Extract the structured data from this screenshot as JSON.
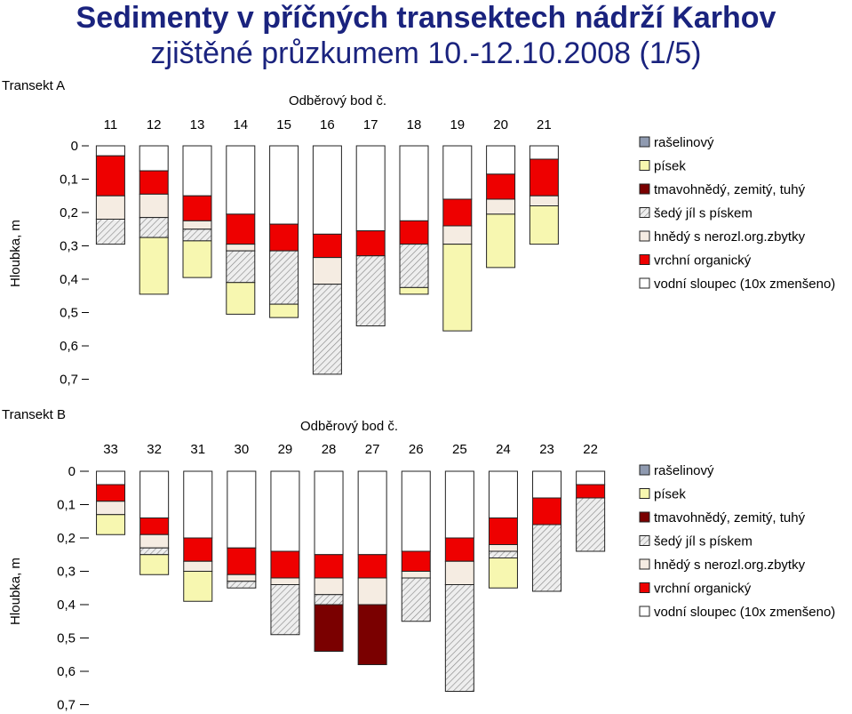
{
  "title": {
    "line1": "Sedimenty v příčných transektech nádrží Karhov",
    "line2": "zjištěné průzkumem 10.-12.10.2008   (1/5)"
  },
  "colors": {
    "rasselinovy": "#8f9ab0",
    "pisek": "#f7f7b0",
    "tmavohnedy": "#7a0000",
    "sedy_jil": "#e4e4e4",
    "hnedy": "#f5ece2",
    "vrchni": "#ee0000",
    "vodni": "#ffffff"
  },
  "legend": [
    {
      "key": "rasselinovy",
      "label": "rašelinový"
    },
    {
      "key": "pisek",
      "label": "písek"
    },
    {
      "key": "tmavohnedy",
      "label": "tmavohnědý, zemitý, tuhý"
    },
    {
      "key": "sedy_jil",
      "label": "šedý jíl s pískem"
    },
    {
      "key": "hnedy",
      "label": "hnědý s nerozl.org.zbytky"
    },
    {
      "key": "vrchni",
      "label": "vrchní organický"
    },
    {
      "key": "vodni",
      "label": "vodní sloupec (10x zmenšeno)"
    }
  ],
  "chart_data": [
    {
      "type": "bar",
      "stacked": true,
      "transect_label": "Transekt A",
      "xlabel": "Odběrový bod č.",
      "ylabel": "Hloubka, m",
      "ylim": [
        0,
        0.7
      ],
      "yticks": [
        "0",
        "0,1",
        "0,2",
        "0,3",
        "0,4",
        "0,5",
        "0,6",
        "0,7"
      ],
      "categories": [
        "11",
        "12",
        "13",
        "14",
        "15",
        "16",
        "17",
        "18",
        "19",
        "20",
        "21"
      ],
      "segment_order": [
        "vodni",
        "vrchni",
        "hnedy",
        "sedy_jil",
        "pisek",
        "tmavohnedy",
        "rasselinovy"
      ],
      "series": [
        {
          "key": "vodni",
          "values": [
            0.03,
            0.075,
            0.15,
            0.205,
            0.235,
            0.265,
            0.255,
            0.225,
            0.16,
            0.085,
            0.04
          ]
        },
        {
          "key": "vrchni",
          "values": [
            0.12,
            0.07,
            0.075,
            0.09,
            0.08,
            0.07,
            0.075,
            0.07,
            0.08,
            0.075,
            0.11
          ]
        },
        {
          "key": "hnedy",
          "values": [
            0.07,
            0.07,
            0.025,
            0.02,
            0.0,
            0.08,
            0.0,
            0.0,
            0.055,
            0.045,
            0.03
          ]
        },
        {
          "key": "sedy_jil",
          "values": [
            0.075,
            0.06,
            0.035,
            0.095,
            0.16,
            0.27,
            0.21,
            0.13,
            0.0,
            0.0,
            0.0
          ]
        },
        {
          "key": "pisek",
          "values": [
            0.0,
            0.17,
            0.11,
            0.095,
            0.04,
            0.0,
            0.0,
            0.02,
            0.26,
            0.16,
            0.115
          ]
        },
        {
          "key": "tmavohnedy",
          "values": [
            0,
            0,
            0,
            0,
            0,
            0,
            0,
            0,
            0,
            0,
            0
          ]
        },
        {
          "key": "rasselinovy",
          "values": [
            0,
            0,
            0,
            0,
            0,
            0,
            0,
            0,
            0,
            0,
            0
          ]
        }
      ]
    },
    {
      "type": "bar",
      "stacked": true,
      "transect_label": "Transekt B",
      "xlabel": "Odběrový bod č.",
      "ylabel": "Hloubka, m",
      "ylim": [
        0,
        0.7
      ],
      "yticks": [
        "0",
        "0,1",
        "0,2",
        "0,3",
        "0,4",
        "0,5",
        "0,6",
        "0,7"
      ],
      "categories": [
        "33",
        "32",
        "31",
        "30",
        "29",
        "28",
        "27",
        "26",
        "25",
        "24",
        "23",
        "22"
      ],
      "segment_order": [
        "vodni",
        "vrchni",
        "hnedy",
        "sedy_jil",
        "pisek",
        "tmavohnedy",
        "rasselinovy"
      ],
      "series": [
        {
          "key": "vodni",
          "values": [
            0.04,
            0.14,
            0.2,
            0.23,
            0.24,
            0.25,
            0.25,
            0.24,
            0.2,
            0.14,
            0.08,
            0.04
          ]
        },
        {
          "key": "vrchni",
          "values": [
            0.05,
            0.05,
            0.07,
            0.08,
            0.08,
            0.07,
            0.07,
            0.06,
            0.07,
            0.08,
            0.08,
            0.04
          ]
        },
        {
          "key": "hnedy",
          "values": [
            0.04,
            0.04,
            0.03,
            0.02,
            0.02,
            0.05,
            0.08,
            0.02,
            0.07,
            0.02,
            0.0,
            0.0
          ]
        },
        {
          "key": "sedy_jil",
          "values": [
            0.0,
            0.02,
            0.0,
            0.02,
            0.15,
            0.03,
            0.0,
            0.13,
            0.32,
            0.02,
            0.2,
            0.16
          ]
        },
        {
          "key": "pisek",
          "values": [
            0.06,
            0.06,
            0.09,
            0.0,
            0.0,
            0.0,
            0.0,
            0.0,
            0.0,
            0.09,
            0.0,
            0.0
          ]
        },
        {
          "key": "tmavohnedy",
          "values": [
            0.0,
            0.0,
            0.0,
            0.0,
            0.0,
            0.14,
            0.18,
            0.0,
            0.0,
            0.0,
            0.0,
            0.0
          ]
        },
        {
          "key": "rasselinovy",
          "values": [
            0,
            0,
            0,
            0,
            0,
            0,
            0,
            0,
            0,
            0,
            0,
            0
          ]
        }
      ]
    }
  ]
}
